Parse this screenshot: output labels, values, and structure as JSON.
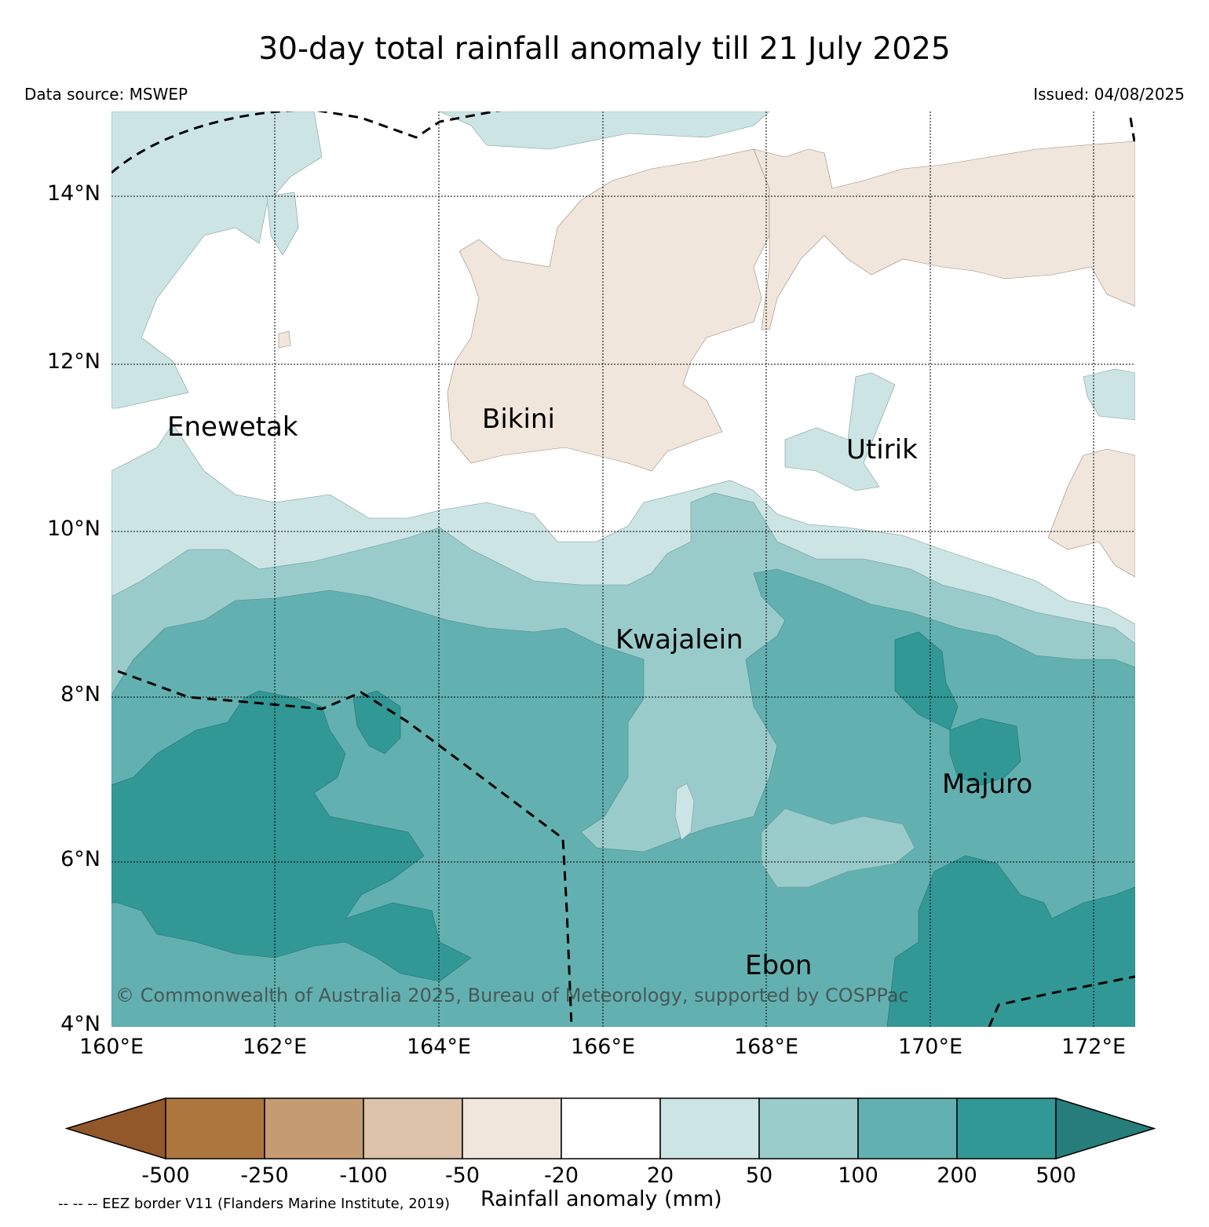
{
  "title": "30-day total rainfall anomaly till 21 July 2025",
  "data_source": "Data source: MSWEP",
  "issued": "Issued: 04/08/2025",
  "copyright": "© Commonwealth of Australia 2025, Bureau of Meteorology, supported by COSPPac",
  "eez_note": "-- -- -- EEZ border V11 (Flanders Marine Institute, 2019)",
  "lat_labels": [
    "14°N",
    "12°N",
    "10°N",
    "8°N",
    "6°N",
    "4°N"
  ],
  "lon_labels": [
    "160°E",
    "162°E",
    "164°E",
    "166°E",
    "168°E",
    "170°E",
    "172°E"
  ],
  "islands": {
    "enewetak": "Enewetak",
    "bikini": "Bikini",
    "utirik": "Utirik",
    "kwajalein": "Kwajalein",
    "majuro": "Majuro",
    "ebon": "Ebon"
  },
  "colorbar": {
    "label": "Rainfall anomaly (mm)",
    "ticks": [
      "-500",
      "-250",
      "-100",
      "-50",
      "-20",
      "20",
      "50",
      "100",
      "200",
      "500"
    ],
    "colors": [
      "#93582a",
      "#ad763f",
      "#c49b73",
      "#dbc2a8",
      "#f1e6dc",
      "#ffffff",
      "#cce5e4",
      "#9acbcb",
      "#63b0b0",
      "#319895",
      "#267d7a"
    ]
  }
}
